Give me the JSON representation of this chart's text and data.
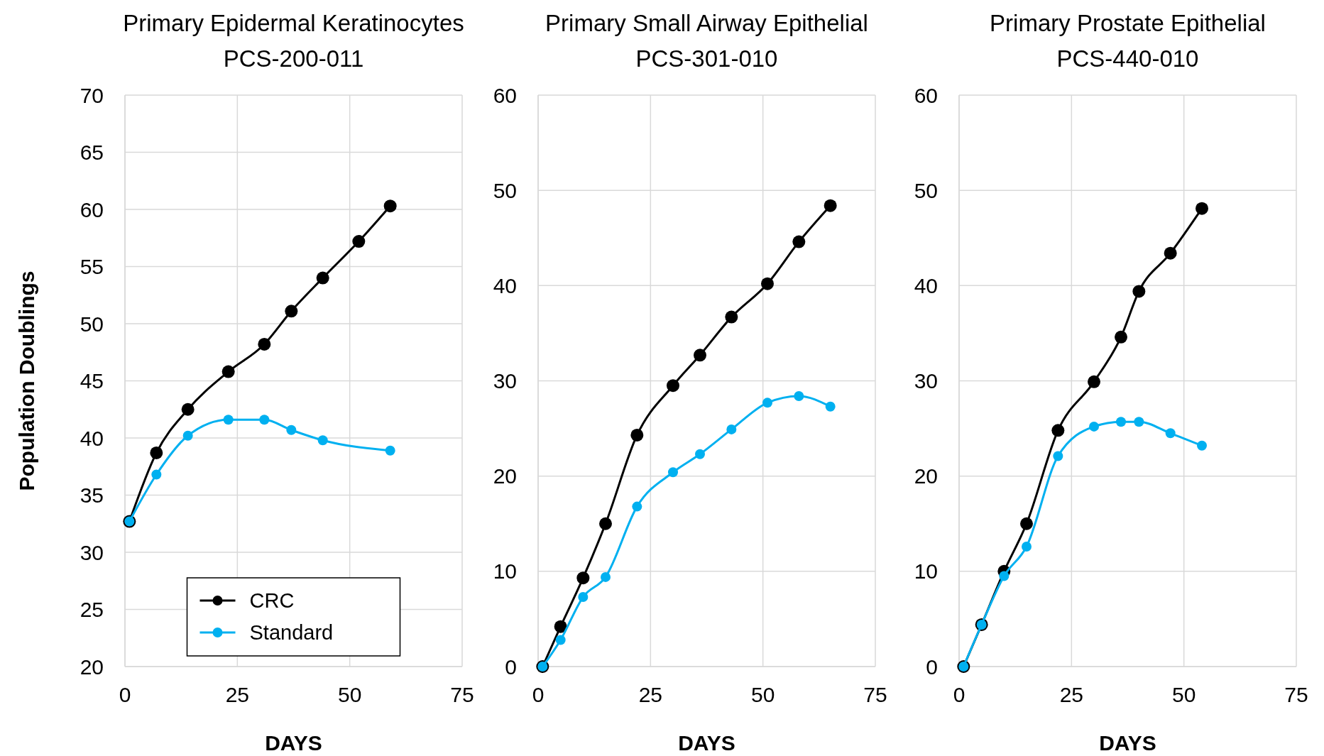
{
  "chart_data": [
    {
      "type": "line",
      "title": "Primary Epidermal Keratinocytes",
      "subtitle": "PCS-200-011",
      "xlabel": "DAYS",
      "ylabel": "Population Doublings",
      "xlim": [
        0,
        75
      ],
      "xticks": [
        0,
        25,
        50,
        75
      ],
      "ylim": [
        20,
        70
      ],
      "yticks": [
        20,
        25,
        30,
        35,
        40,
        45,
        50,
        55,
        60,
        65,
        70
      ],
      "grid": true,
      "legend": "bottom",
      "marker": "circle",
      "line_style": "solid",
      "series": [
        {
          "name": "CRC",
          "color": "#000000",
          "x": [
            1,
            7,
            14,
            23,
            31,
            37,
            44,
            52,
            59
          ],
          "values": [
            32.7,
            38.7,
            42.5,
            45.8,
            48.2,
            51.1,
            54,
            57.2,
            60.3
          ]
        },
        {
          "name": "Standard",
          "color": "#00b0f0",
          "x": [
            1,
            7,
            14,
            23,
            31,
            37,
            44,
            59
          ],
          "values": [
            32.7,
            36.8,
            40.2,
            41.6,
            41.6,
            40.7,
            39.8,
            38.9
          ]
        }
      ]
    },
    {
      "type": "line",
      "title": "Primary Small Airway Epithelial",
      "subtitle": "PCS-301-010",
      "xlabel": "DAYS",
      "xlim": [
        0,
        75
      ],
      "xticks": [
        0,
        25,
        50,
        75
      ],
      "ylim": [
        0,
        60
      ],
      "yticks": [
        0,
        10,
        20,
        30,
        40,
        50,
        60
      ],
      "grid": true,
      "marker": "circle",
      "line_style": "solid",
      "series": [
        {
          "color": "#000000",
          "x": [
            1,
            5,
            10,
            15,
            22,
            30,
            36,
            43,
            51,
            58,
            65
          ],
          "values": [
            0,
            4.2,
            9.3,
            15,
            24.3,
            29.5,
            32.7,
            36.7,
            40.2,
            44.6,
            48.4
          ]
        },
        {
          "color": "#00b0f0",
          "x": [
            1,
            5,
            10,
            15,
            22,
            30,
            36,
            43,
            51,
            58,
            65
          ],
          "values": [
            0,
            2.8,
            7.3,
            9.4,
            16.8,
            20.4,
            22.3,
            24.9,
            27.7,
            28.4,
            27.3
          ]
        }
      ]
    },
    {
      "type": "line",
      "title": "Primary Prostate Epithelial",
      "subtitle": "PCS-440-010",
      "xlabel": "DAYS",
      "xlim": [
        0,
        75
      ],
      "xticks": [
        0,
        25,
        50,
        75
      ],
      "ylim": [
        0,
        60
      ],
      "yticks": [
        0,
        10,
        20,
        30,
        40,
        50,
        60
      ],
      "grid": true,
      "marker": "circle",
      "line_style": "solid",
      "series": [
        {
          "color": "#000000",
          "x": [
            1,
            5,
            10,
            15,
            22,
            30,
            36,
            40,
            47,
            54
          ],
          "values": [
            0,
            4.4,
            10,
            15,
            24.8,
            29.9,
            34.6,
            39.4,
            43.4,
            48.1
          ]
        },
        {
          "color": "#00b0f0",
          "x": [
            1,
            5,
            10,
            15,
            22,
            30,
            36,
            40,
            47,
            54
          ],
          "values": [
            0,
            4.4,
            9.5,
            12.6,
            22.1,
            25.2,
            25.7,
            25.7,
            24.5,
            23.2
          ]
        }
      ]
    }
  ]
}
